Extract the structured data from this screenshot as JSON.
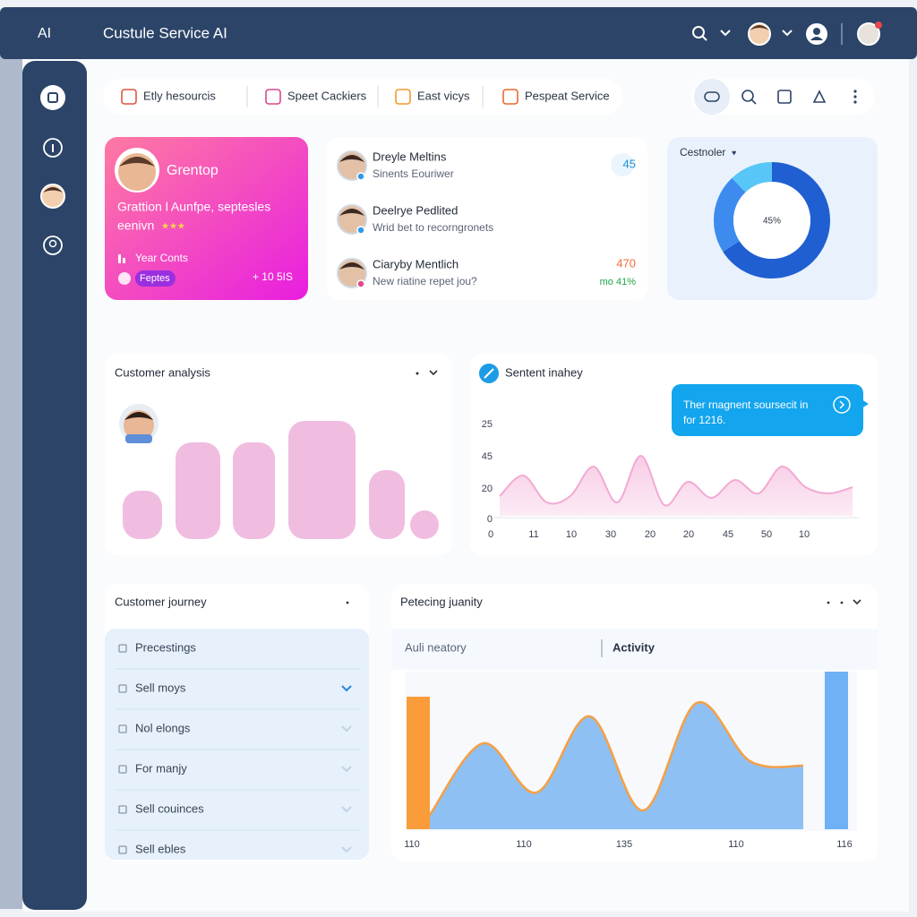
{
  "header": {
    "logo": "AI",
    "title": "Custule Service AI"
  },
  "tabs": [
    "Etly hesourcis",
    "Speet Cackiers",
    "East vicys",
    "Pespeat Service"
  ],
  "profile_card": {
    "name": "Grentop",
    "line1": "Grattion l Aunfpe, septesles",
    "line2": "eenivn",
    "stat_label": "Year Conts",
    "pill": "Feptes",
    "stat_value": "+ 10 5IS"
  },
  "contacts": [
    {
      "name": "Dreyle Meltins",
      "subtitle": "Sinents Eouriwer",
      "value": "45"
    },
    {
      "name": "Deelrye Pedlited",
      "subtitle": "Wrid bet to recorngronets"
    },
    {
      "name": "Ciaryby Mentlich",
      "subtitle": "New riatine repet jou?",
      "value": "470",
      "change": "mo 41%"
    }
  ],
  "donut": {
    "title": "Cestnoler",
    "center_label": "45%",
    "segments": [
      {
        "value": 66,
        "color": "#1f5fd1"
      },
      {
        "value": 22,
        "color": "#3d8bef"
      },
      {
        "value": 12,
        "color": "#58c6f6"
      }
    ]
  },
  "analysis": {
    "title": "Customer analysis",
    "color": "#f0bde0",
    "values": [
      54,
      108,
      108,
      132,
      77,
      32
    ]
  },
  "sentiment": {
    "title": "Sentent inahey",
    "tooltip": [
      "Ther rnagnent soursecit in",
      "for 1216."
    ],
    "y_labels": [
      "25",
      "45",
      "20",
      "0"
    ],
    "x_labels": [
      "0",
      "11",
      "10",
      "30",
      "20",
      "20",
      "45",
      "50",
      "10"
    ],
    "color": "#f3a9d2",
    "values": [
      22,
      45,
      15,
      22,
      55,
      15,
      67,
      12,
      38,
      20,
      40,
      25,
      55,
      32,
      25,
      32
    ]
  },
  "journey": {
    "title": "Customer journey",
    "items": [
      "Precestings",
      "Sell moys",
      "Nol elongs",
      "For manjy",
      "Sell couinces",
      "Sell ebles"
    ]
  },
  "activity": {
    "title": "Petecing juanity",
    "tab_left": "Auli neatory",
    "tab_right": "Activity",
    "x_labels": [
      "110",
      "110",
      "135",
      "110",
      "116"
    ],
    "values": [
      16,
      96,
      41,
      126,
      21,
      141,
      76,
      71
    ],
    "bars": [
      {
        "value": 148,
        "color": "#fb9c3a"
      },
      {
        "value": 176,
        "color": "#6fb1f5"
      }
    ]
  }
}
